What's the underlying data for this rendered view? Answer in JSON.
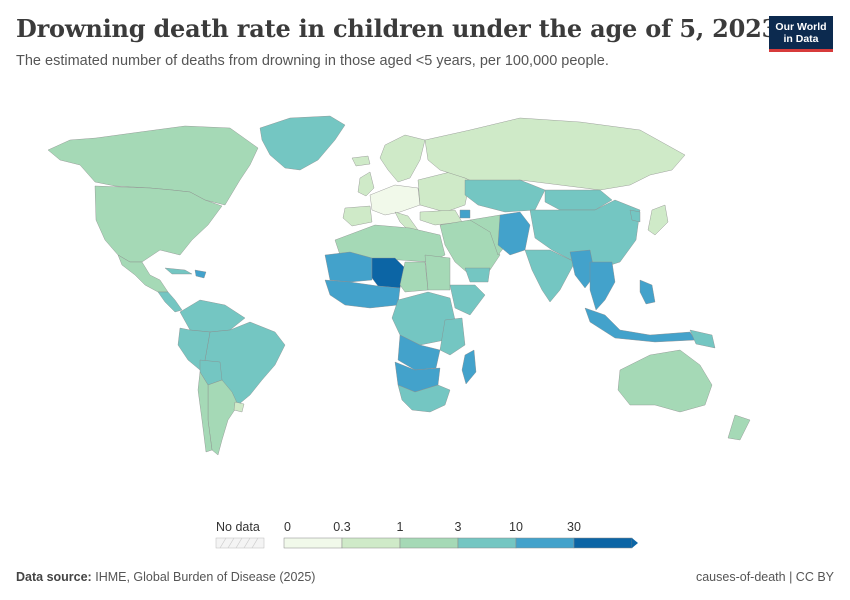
{
  "header": {
    "title": "Drowning death rate in children under the age of 5, 2023",
    "subtitle": "The estimated number of deaths from drowning in those aged <5 years, per 100,000 people."
  },
  "logo": {
    "line1": "Our World",
    "line2": "in Data"
  },
  "legend": {
    "no_data_label": "No data",
    "ticks": [
      "0",
      "0.3",
      "1",
      "3",
      "10",
      "30"
    ],
    "colors": [
      "#f1f9ea",
      "#cfeac8",
      "#a5d9b6",
      "#74c6c2",
      "#43a2cb",
      "#0c65a5"
    ]
  },
  "footer": {
    "source_label": "Data source:",
    "source_text": "IHME, Global Burden of Disease (2025)",
    "right_text": "causes-of-death | CC BY"
  }
}
